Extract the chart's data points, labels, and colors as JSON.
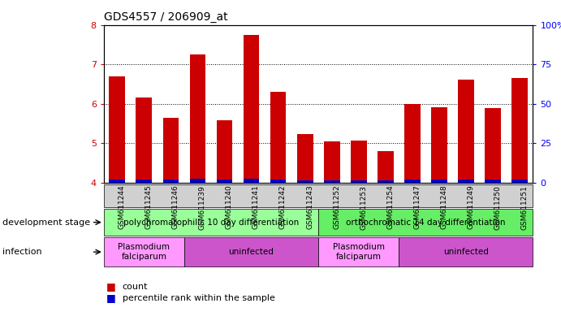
{
  "title": "GDS4557 / 206909_at",
  "samples": [
    "GSM611244",
    "GSM611245",
    "GSM611246",
    "GSM611239",
    "GSM611240",
    "GSM611241",
    "GSM611242",
    "GSM611243",
    "GSM611252",
    "GSM611253",
    "GSM611254",
    "GSM611247",
    "GSM611248",
    "GSM611249",
    "GSM611250",
    "GSM611251"
  ],
  "counts": [
    6.7,
    6.15,
    5.65,
    7.25,
    5.58,
    7.75,
    6.3,
    5.22,
    5.05,
    5.07,
    4.8,
    6.0,
    5.92,
    6.62,
    5.9,
    6.65
  ],
  "percentile_ranks": [
    0.07,
    0.07,
    0.07,
    0.09,
    0.08,
    0.09,
    0.07,
    0.06,
    0.06,
    0.06,
    0.06,
    0.07,
    0.07,
    0.08,
    0.07,
    0.08
  ],
  "ymin": 4.0,
  "ymax": 8.0,
  "bar_color": "#CC0000",
  "percentile_color": "#0000CC",
  "background_color": "#ffffff",
  "grid_color": "#000000",
  "dev_stage_groups": [
    {
      "label": "polychromatophilic 10 day differentiation",
      "start": 0,
      "end": 7,
      "color": "#99FF99"
    },
    {
      "label": "orthochromatic 14 day differentiation",
      "start": 8,
      "end": 15,
      "color": "#66EE66"
    }
  ],
  "infection_groups": [
    {
      "label": "Plasmodium\nfalciparum",
      "start": 0,
      "end": 2,
      "color": "#FF99FF"
    },
    {
      "label": "uninfected",
      "start": 3,
      "end": 7,
      "color": "#CC55CC"
    },
    {
      "label": "Plasmodium\nfalciparum",
      "start": 8,
      "end": 10,
      "color": "#FF99FF"
    },
    {
      "label": "uninfected",
      "start": 11,
      "end": 15,
      "color": "#CC55CC"
    }
  ],
  "yticks_left": [
    4,
    5,
    6,
    7,
    8
  ],
  "yticks_right": [
    0,
    25,
    50,
    75,
    100
  ],
  "right_axis_color": "#0000FF",
  "left_axis_color": "#CC0000",
  "dev_stage_label": "development stage",
  "infection_label": "infection",
  "legend_count_label": "count",
  "legend_pct_label": "percentile rank within the sample"
}
